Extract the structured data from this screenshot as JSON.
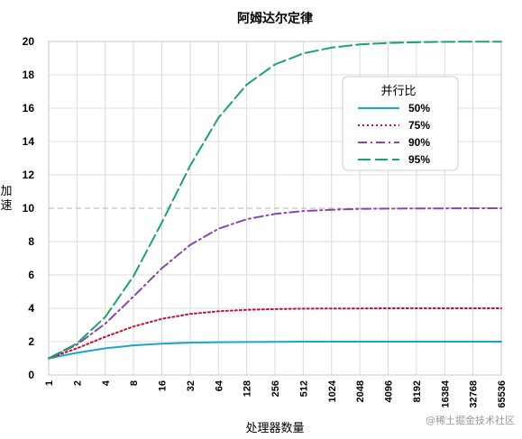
{
  "chart_data": {
    "type": "line",
    "title": "阿姆达尔定律",
    "xlabel": "处理器数量",
    "ylabel": "加速",
    "x_scale": "log2",
    "x": [
      1,
      2,
      4,
      8,
      16,
      32,
      64,
      128,
      256,
      512,
      1024,
      2048,
      4096,
      8192,
      16384,
      32768,
      65536
    ],
    "x_tick_labels": [
      "1",
      "2",
      "4",
      "8",
      "16",
      "32",
      "64",
      "128",
      "256",
      "512",
      "1024",
      "2048",
      "4096",
      "8192",
      "16384",
      "32768",
      "65536"
    ],
    "y_ticks": [
      0,
      2,
      4,
      6,
      8,
      10,
      12,
      14,
      16,
      18,
      20
    ],
    "y_tick_labels": [
      "0",
      "2",
      "4",
      "6",
      "8",
      "10",
      "12",
      "14",
      "16",
      "18",
      "20"
    ],
    "ylim": [
      0,
      20
    ],
    "grid": true,
    "legend": {
      "title": "并行比",
      "position": "top-right"
    },
    "series": [
      {
        "name": "50%",
        "color": "#1aa7c9",
        "dash": "solid",
        "values": [
          1,
          1.33,
          1.6,
          1.78,
          1.88,
          1.94,
          1.97,
          1.98,
          1.99,
          2.0,
          2.0,
          2.0,
          2.0,
          2.0,
          2.0,
          2.0,
          2.0
        ]
      },
      {
        "name": "75%",
        "color": "#c8102e",
        "dash": "dotted",
        "values": [
          1,
          1.6,
          2.29,
          2.91,
          3.37,
          3.66,
          3.82,
          3.91,
          3.95,
          3.98,
          3.99,
          3.99,
          4.0,
          4.0,
          4.0,
          4.0,
          4.0
        ]
      },
      {
        "name": "90%",
        "color": "#8e44ad",
        "dash": "dashdot",
        "values": [
          1,
          1.82,
          3.08,
          4.71,
          6.4,
          7.8,
          8.77,
          9.34,
          9.66,
          9.83,
          9.91,
          9.96,
          9.98,
          9.99,
          9.99,
          10.0,
          10.0
        ]
      },
      {
        "name": "95%",
        "color": "#1aa36e",
        "dash": "longdash",
        "values": [
          1,
          1.9,
          3.48,
          5.93,
          9.14,
          12.55,
          15.42,
          17.41,
          18.62,
          19.28,
          19.63,
          19.82,
          19.91,
          19.95,
          19.98,
          19.99,
          19.99
        ]
      }
    ]
  },
  "watermark": "@稀土掘金技术社区"
}
